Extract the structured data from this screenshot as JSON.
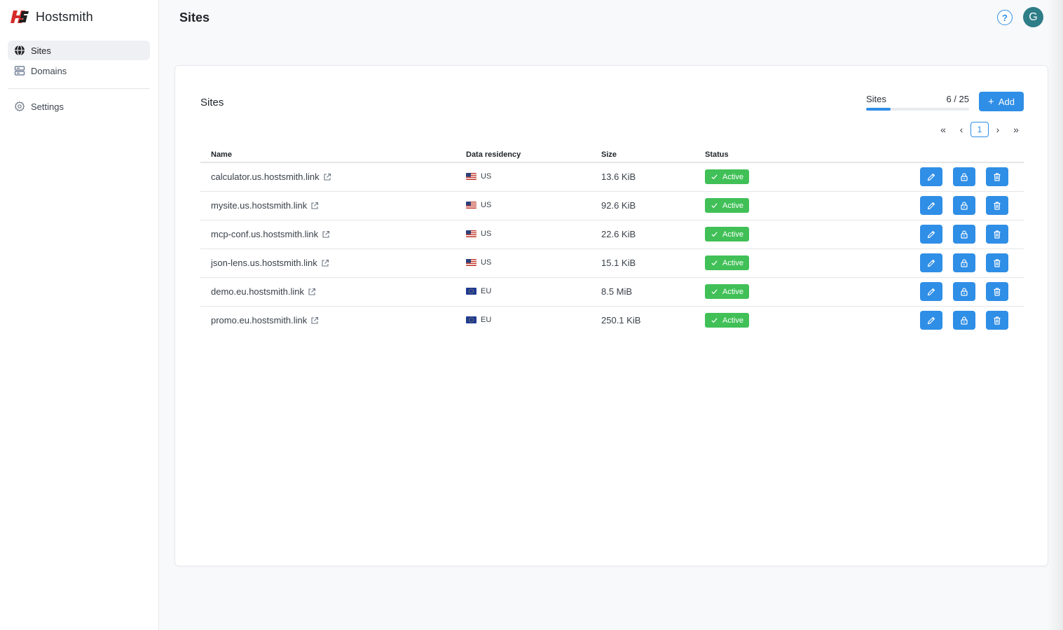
{
  "app": {
    "name": "Hostsmith",
    "logo_text": "HS"
  },
  "sidebar": {
    "items": [
      {
        "label": "Sites",
        "icon": "globe-icon",
        "active": true
      },
      {
        "label": "Domains",
        "icon": "server-icon",
        "active": false
      }
    ],
    "footer_items": [
      {
        "label": "Settings",
        "icon": "gear-icon"
      }
    ]
  },
  "header": {
    "title": "Sites",
    "help_icon": "?",
    "avatar_initial": "G"
  },
  "card": {
    "title": "Sites",
    "quota": {
      "label": "Sites",
      "count": "6 / 25",
      "fraction": 0.24
    },
    "add_label": "Add",
    "pagination": {
      "current": "1"
    }
  },
  "table": {
    "columns": [
      "Name",
      "Data residency",
      "Size",
      "Status"
    ],
    "rows": [
      {
        "name": "calculator.us.hostsmith.link",
        "region": "US",
        "size": "13.6 KiB",
        "status": "Active"
      },
      {
        "name": "mysite.us.hostsmith.link",
        "region": "US",
        "size": "92.6 KiB",
        "status": "Active"
      },
      {
        "name": "mcp-conf.us.hostsmith.link",
        "region": "US",
        "size": "22.6 KiB",
        "status": "Active"
      },
      {
        "name": "json-lens.us.hostsmith.link",
        "region": "US",
        "size": "15.1 KiB",
        "status": "Active"
      },
      {
        "name": "demo.eu.hostsmith.link",
        "region": "EU",
        "size": "8.5 MiB",
        "status": "Active"
      },
      {
        "name": "promo.eu.hostsmith.link",
        "region": "EU",
        "size": "250.1 KiB",
        "status": "Active"
      }
    ]
  },
  "colors": {
    "accent": "#2f8ee6",
    "success": "#40c057",
    "brand": "#d62b2b"
  }
}
